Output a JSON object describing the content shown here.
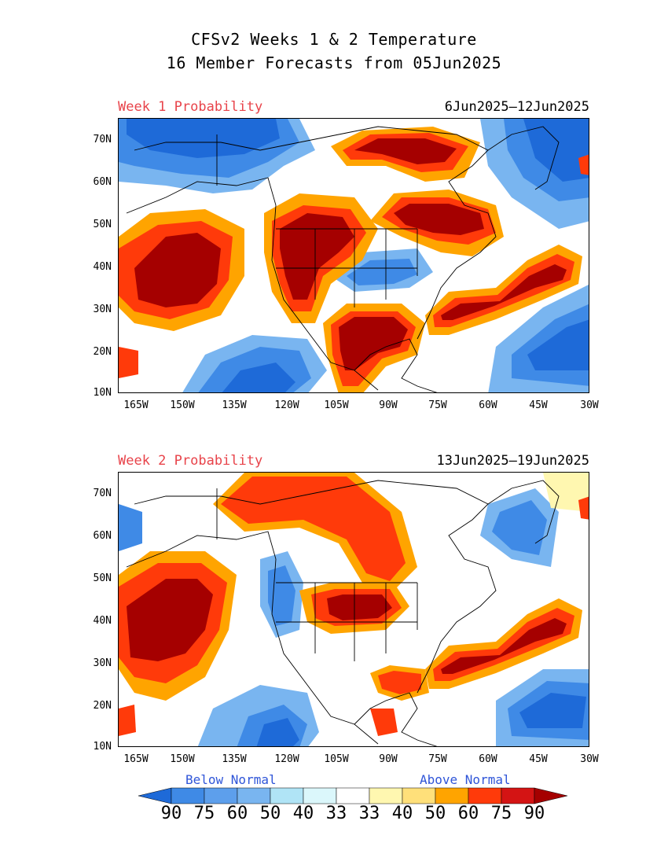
{
  "header": {
    "line1": "CFSv2 Weeks 1 & 2 Temperature",
    "line2": "16 Member Forecasts from 05Jun2025"
  },
  "panels": [
    {
      "label": "Week 1 Probability",
      "dates": "6Jun2025—12Jun2025"
    },
    {
      "label": "Week 2 Probability",
      "dates": "13Jun2025—19Jun2025"
    }
  ],
  "axes": {
    "lat_labels": [
      "70N",
      "60N",
      "50N",
      "40N",
      "30N",
      "20N",
      "10N"
    ],
    "lon_labels": [
      "165W",
      "150W",
      "135W",
      "120W",
      "105W",
      "90W",
      "75W",
      "60W",
      "45W",
      "30W"
    ]
  },
  "legend": {
    "below_label": "Below Normal",
    "above_label": "Above Normal",
    "values": [
      "90",
      "75",
      "60",
      "50",
      "40",
      "33",
      "33",
      "40",
      "50",
      "60",
      "75",
      "90"
    ],
    "colors": [
      "#1e6ad8",
      "#3f8ae6",
      "#79b5f0",
      "#b0e4f6",
      "#dbf7fb",
      "#ffffff",
      "#ffffff",
      "#fff7b0",
      "#ffe07a",
      "#ffa400",
      "#ff3a0a",
      "#d41414",
      "#a50000"
    ]
  },
  "colors": {
    "below_text": "#2f55d8",
    "above_text": "#e8434a"
  }
}
